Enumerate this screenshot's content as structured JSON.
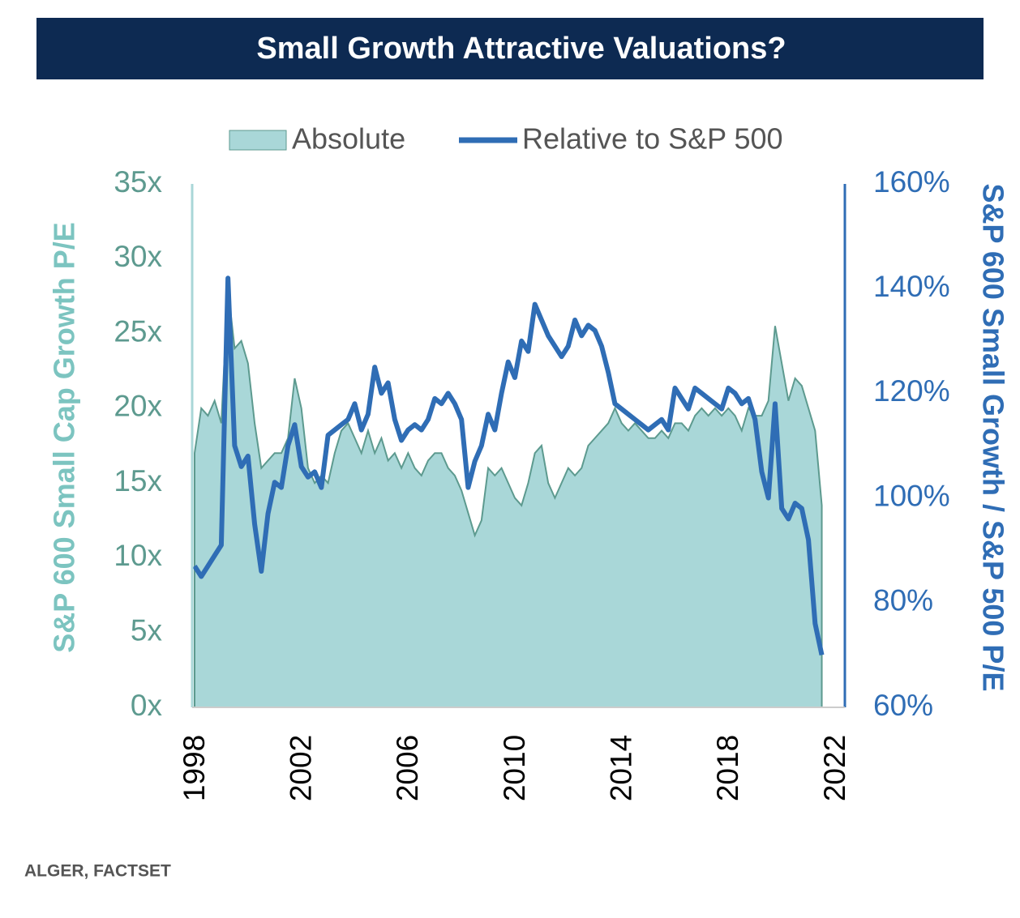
{
  "chart_data": {
    "type": "combo",
    "title": "Small Growth Attractive Valuations?",
    "y_label": "S&P 600 Small Cap Growth  P/E",
    "y2_label": "S&P 600 Small  Growth / S&P 500 P/E",
    "source": "ALGER, FACTSET",
    "xlim": [
      1998,
      2022
    ],
    "xticks": [
      1998,
      2002,
      2006,
      2010,
      2014,
      2018,
      2022
    ],
    "ylim": [
      0,
      35
    ],
    "yticks": [
      {
        "value": 0,
        "label": "0x"
      },
      {
        "value": 5,
        "label": "5x"
      },
      {
        "value": 10,
        "label": "10x"
      },
      {
        "value": 15,
        "label": "15x"
      },
      {
        "value": 20,
        "label": "20x"
      },
      {
        "value": 25,
        "label": "25x"
      },
      {
        "value": 30,
        "label": "30x"
      },
      {
        "value": 35,
        "label": "35x"
      }
    ],
    "y2lim": [
      60,
      160
    ],
    "y2ticks": [
      {
        "value": 60,
        "label": "60%"
      },
      {
        "value": 80,
        "label": "80%"
      },
      {
        "value": 100,
        "label": "100%"
      },
      {
        "value": 120,
        "label": "120%"
      },
      {
        "value": 140,
        "label": "140%"
      },
      {
        "value": 160,
        "label": "160%"
      }
    ],
    "x": [
      1998,
      1998.25,
      1998.5,
      1998.75,
      1999,
      1999.25,
      1999.5,
      1999.75,
      2000,
      2000.25,
      2000.5,
      2000.75,
      2001,
      2001.25,
      2001.5,
      2001.75,
      2002,
      2002.25,
      2002.5,
      2002.75,
      2003,
      2003.25,
      2003.5,
      2003.75,
      2004,
      2004.25,
      2004.5,
      2004.75,
      2005,
      2005.25,
      2005.5,
      2005.75,
      2006,
      2006.25,
      2006.5,
      2006.75,
      2007,
      2007.25,
      2007.5,
      2007.75,
      2008,
      2008.25,
      2008.5,
      2008.75,
      2009,
      2009.25,
      2009.5,
      2009.75,
      2010,
      2010.25,
      2010.5,
      2010.75,
      2011,
      2011.25,
      2011.5,
      2011.75,
      2012,
      2012.25,
      2012.5,
      2012.75,
      2013,
      2013.25,
      2013.5,
      2013.75,
      2014,
      2014.25,
      2014.5,
      2014.75,
      2015,
      2015.25,
      2015.5,
      2015.75,
      2016,
      2016.25,
      2016.5,
      2016.75,
      2017,
      2017.25,
      2017.5,
      2017.75,
      2018,
      2018.25,
      2018.5,
      2018.75,
      2019,
      2019.25,
      2019.5,
      2019.75,
      2020,
      2020.25,
      2020.5,
      2020.75,
      2021,
      2021.25,
      2021.5
    ],
    "series": [
      {
        "name": "Absolute",
        "type": "area",
        "color": "#a9d7d8",
        "stroke": "#5d9a8f",
        "values": [
          17,
          20,
          19.5,
          20.5,
          19,
          28,
          24,
          24.5,
          23,
          19,
          16,
          16.5,
          17,
          17,
          18,
          22,
          20,
          16,
          15,
          15.5,
          15,
          17,
          18.5,
          19,
          18,
          17,
          18.5,
          17,
          18,
          16.5,
          17,
          16,
          17,
          16,
          15.5,
          16.5,
          17,
          17,
          16,
          15.5,
          14.5,
          13,
          11.5,
          12.5,
          16,
          15.5,
          16,
          15,
          14,
          13.5,
          15,
          17,
          17.5,
          15,
          14,
          15,
          16,
          15.5,
          16,
          17.5,
          18,
          18.5,
          19,
          20,
          19,
          18.5,
          19,
          18.5,
          18,
          18,
          18.5,
          18,
          19,
          19,
          18.5,
          19.5,
          20,
          19.5,
          20,
          19.5,
          20,
          19.5,
          18.5,
          20,
          19.5,
          19.5,
          20.5,
          25.5,
          23,
          20.5,
          22,
          21.5,
          20,
          18.5,
          13.5
        ]
      },
      {
        "name": "Relative to S&P 500",
        "type": "line",
        "axis": "y2",
        "color": "#2f6db5",
        "values": [
          87,
          85,
          87,
          89,
          91,
          142,
          110,
          106,
          108,
          95,
          86,
          97,
          103,
          102,
          110,
          114,
          106,
          104,
          105,
          102,
          112,
          113,
          114,
          115,
          118,
          113,
          116,
          125,
          120,
          122,
          115,
          111,
          113,
          114,
          113,
          115,
          119,
          118,
          120,
          118,
          115,
          102,
          107,
          110,
          116,
          113,
          120,
          126,
          123,
          130,
          128,
          137,
          134,
          131,
          129,
          127,
          129,
          134,
          131,
          133,
          132,
          129,
          124,
          118,
          117,
          116,
          115,
          114,
          113,
          114,
          115,
          113,
          121,
          119,
          117,
          121,
          120,
          119,
          118,
          117,
          121,
          120,
          118,
          119,
          115,
          105,
          100,
          118,
          98,
          96,
          99,
          98,
          92,
          76,
          70
        ]
      }
    ]
  }
}
